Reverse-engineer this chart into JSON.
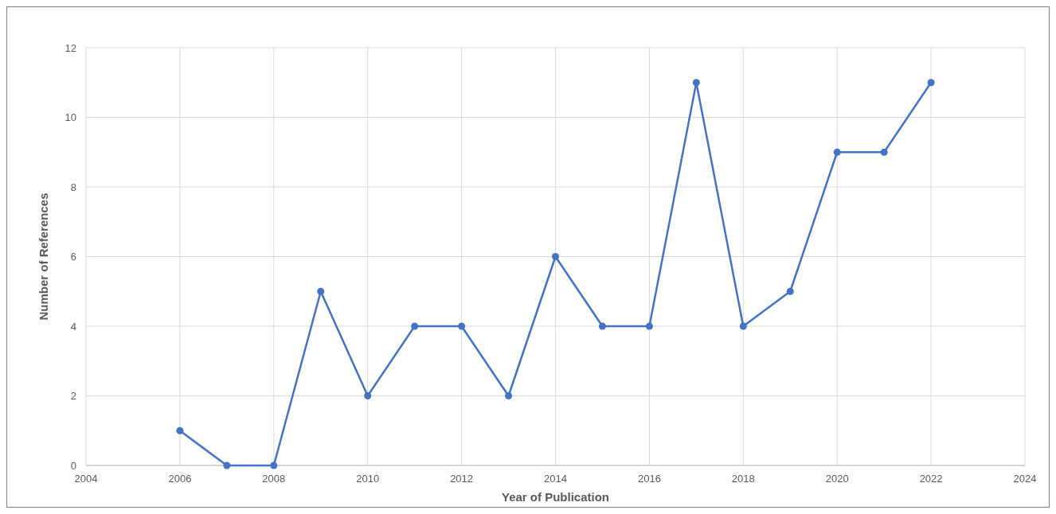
{
  "chart_data": {
    "type": "line",
    "xlabel": "Year of Publication",
    "ylabel": "Number of References",
    "x": [
      2006,
      2007,
      2008,
      2009,
      2010,
      2011,
      2012,
      2013,
      2014,
      2015,
      2016,
      2017,
      2018,
      2019,
      2020,
      2021,
      2022
    ],
    "series": [
      {
        "color": "#4472c4",
        "values": [
          1,
          0,
          0,
          5,
          2,
          4,
          4,
          2,
          6,
          4,
          4,
          11,
          4,
          5,
          9,
          9,
          11
        ]
      }
    ],
    "xlim": [
      2004,
      2024
    ],
    "xticks": [
      2004,
      2006,
      2008,
      2010,
      2012,
      2014,
      2016,
      2018,
      2020,
      2022,
      2024
    ],
    "ylim": [
      0,
      12
    ],
    "yticks": [
      0,
      2,
      4,
      6,
      8,
      10,
      12
    ],
    "grid": true,
    "marker": "circle",
    "line_style": "solid"
  }
}
